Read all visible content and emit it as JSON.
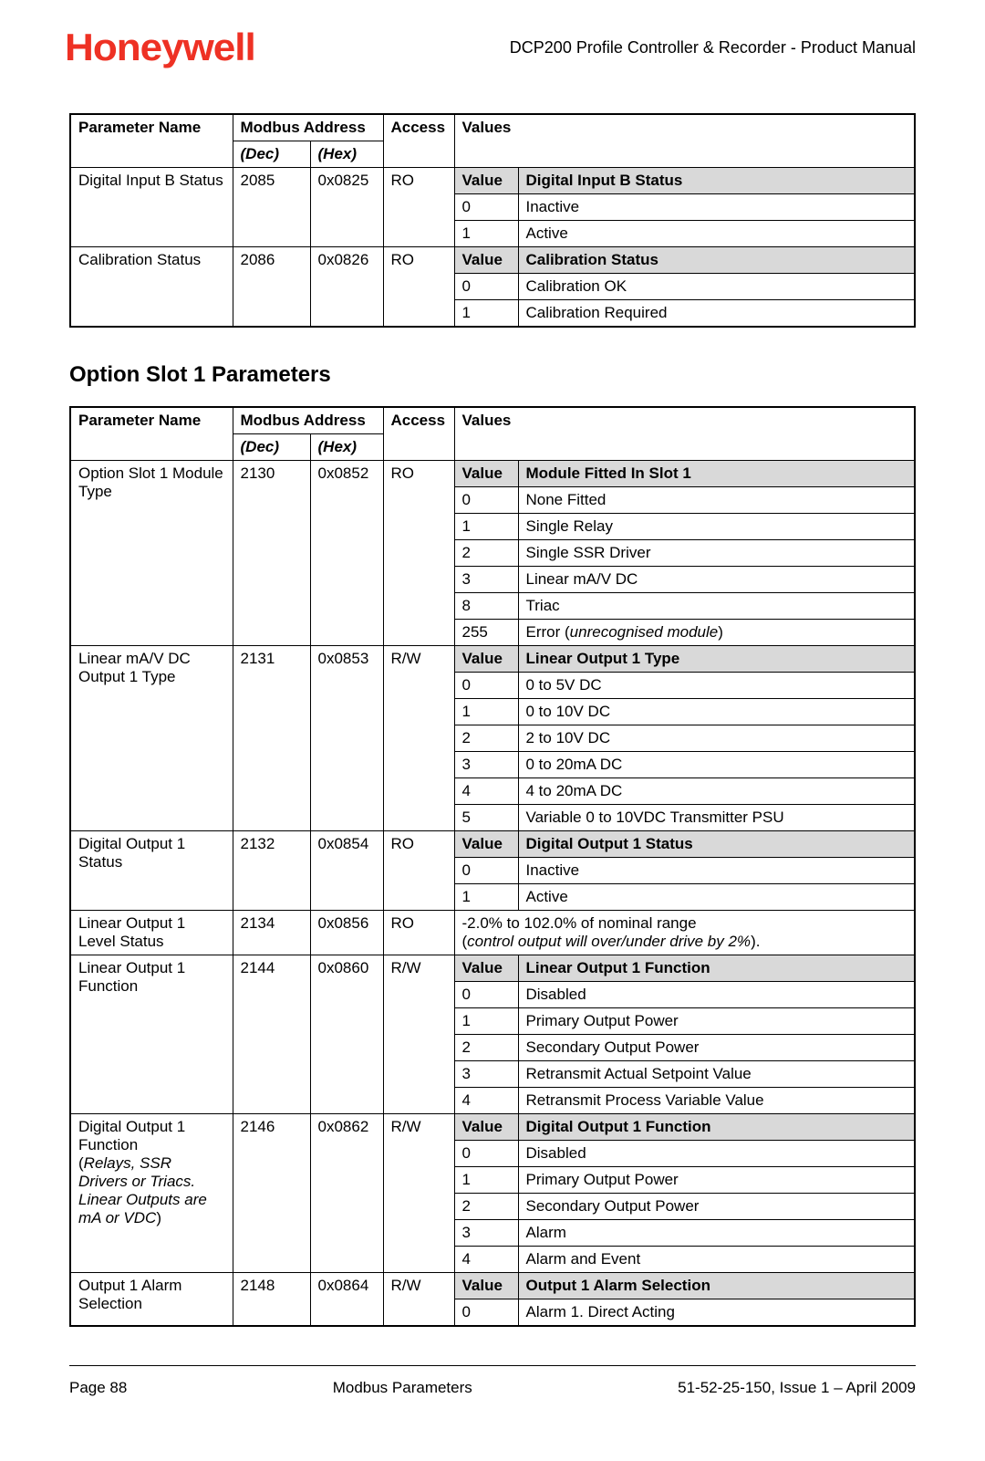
{
  "header": {
    "logo_text": "Honeywell",
    "doc_title": "DCP200 Profile Controller & Recorder - Product Manual"
  },
  "table1": {
    "columns": {
      "param": "Parameter Name",
      "modbus": "Modbus Address",
      "dec": "(Dec)",
      "hex": "(Hex)",
      "access": "Access",
      "values": "Values"
    },
    "rows": [
      {
        "param": "Digital Input B Status",
        "dec": "2085",
        "hex": "0x0825",
        "access": "RO",
        "subhead_value": "Value",
        "subhead_desc": "Digital Input B Status",
        "values": [
          {
            "v": "0",
            "d": "Inactive"
          },
          {
            "v": "1",
            "d": "Active"
          }
        ]
      },
      {
        "param": "Calibration Status",
        "dec": "2086",
        "hex": "0x0826",
        "access": "RO",
        "subhead_value": "Value",
        "subhead_desc": "Calibration Status",
        "values": [
          {
            "v": "0",
            "d": "Calibration OK"
          },
          {
            "v": "1",
            "d": "Calibration Required"
          }
        ]
      }
    ]
  },
  "section_title": "Option Slot 1 Parameters",
  "table2": {
    "columns": {
      "param": "Parameter Name",
      "modbus": "Modbus Address",
      "dec": "(Dec)",
      "hex": "(Hex)",
      "access": "Access",
      "values": "Values"
    },
    "rows": [
      {
        "param": "Option Slot 1 Module Type",
        "dec": "2130",
        "hex": "0x0852",
        "access": "RO",
        "subhead_value": "Value",
        "subhead_desc": "Module Fitted In Slot 1",
        "values": [
          {
            "v": "0",
            "d": "None Fitted"
          },
          {
            "v": "1",
            "d": "Single Relay"
          },
          {
            "v": "2",
            "d": "Single SSR Driver"
          },
          {
            "v": "3",
            "d": "Linear mA/V DC"
          },
          {
            "v": "8",
            "d": "Triac"
          },
          {
            "v": "255",
            "d_html": "Error (<i>unrecognised module</i>)"
          }
        ]
      },
      {
        "param": "Linear mA/V DC Output 1 Type",
        "dec": "2131",
        "hex": "0x0853",
        "access": "R/W",
        "subhead_value": "Value",
        "subhead_desc": "Linear Output 1 Type",
        "values": [
          {
            "v": "0",
            "d": "0 to 5V DC"
          },
          {
            "v": "1",
            "d": "0 to 10V DC"
          },
          {
            "v": "2",
            "d": "2 to 10V DC"
          },
          {
            "v": "3",
            "d": "0 to 20mA DC"
          },
          {
            "v": "4",
            "d": "4 to 20mA DC"
          },
          {
            "v": "5",
            "d": "Variable 0 to 10VDC Transmitter PSU"
          }
        ]
      },
      {
        "param": "Digital Output 1 Status",
        "dec": "2132",
        "hex": "0x0854",
        "access": "RO",
        "subhead_value": "Value",
        "subhead_desc": "Digital Output 1 Status",
        "values": [
          {
            "v": "0",
            "d": "Inactive"
          },
          {
            "v": "1",
            "d": "Active"
          }
        ]
      },
      {
        "param": "Linear Output 1 Level Status",
        "dec": "2134",
        "hex": "0x0856",
        "access": "RO",
        "free_text_html": "-2.0% to 102.0% of nominal range<br>(<i>control output will over/under drive by 2%</i>)."
      },
      {
        "param": "Linear Output 1 Function",
        "dec": "2144",
        "hex": "0x0860",
        "access": "R/W",
        "subhead_value": "Value",
        "subhead_desc": "Linear Output 1 Function",
        "values": [
          {
            "v": "0",
            "d": "Disabled"
          },
          {
            "v": "1",
            "d": "Primary Output Power"
          },
          {
            "v": "2",
            "d": "Secondary Output Power"
          },
          {
            "v": "3",
            "d": "Retransmit Actual Setpoint Value"
          },
          {
            "v": "4",
            "d": "Retransmit Process Variable Value"
          }
        ]
      },
      {
        "param_html": "Digital Output 1 Function<br>(<i>Relays, SSR Drivers or Triacs. Linear Outputs are mA or VDC</i>)",
        "dec": "2146",
        "hex": "0x0862",
        "access": "R/W",
        "subhead_value": "Value",
        "subhead_desc": "Digital Output 1 Function",
        "values": [
          {
            "v": "0",
            "d": "Disabled"
          },
          {
            "v": "1",
            "d": "Primary Output Power"
          },
          {
            "v": "2",
            "d": "Secondary Output Power"
          },
          {
            "v": "3",
            "d": "Alarm"
          },
          {
            "v": "4",
            "d": "Alarm and Event"
          }
        ]
      },
      {
        "param": "Output 1 Alarm Selection",
        "dec": "2148",
        "hex": "0x0864",
        "access": "R/W",
        "subhead_value": "Value",
        "subhead_desc": "Output 1 Alarm Selection",
        "values": [
          {
            "v": "0",
            "d": "Alarm 1. Direct Acting"
          }
        ]
      }
    ]
  },
  "footer": {
    "left": "Page 88",
    "center": "Modbus Parameters",
    "right": "51-52-25-150, Issue 1 – April 2009"
  },
  "colors": {
    "logo": "#ee3124",
    "gray": "#d9d9d9",
    "text": "#000000",
    "border": "#000000",
    "background": "#ffffff"
  }
}
